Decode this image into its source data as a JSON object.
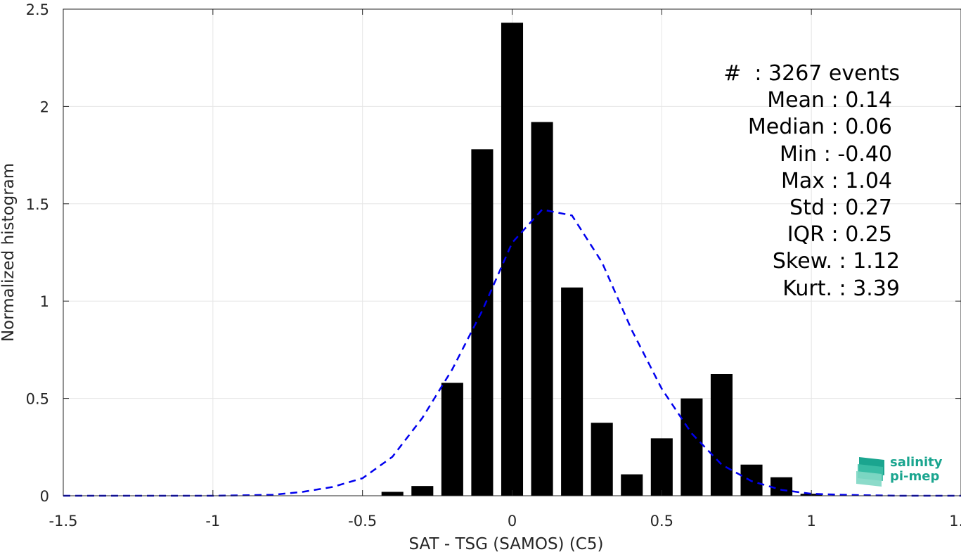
{
  "chart_data": {
    "type": "bar",
    "xlabel": "SAT - TSG (SAMOS) (C5)",
    "ylabel": "Normalized histogram",
    "xlim": [
      -1.5,
      1.5
    ],
    "ylim": [
      0,
      2.5
    ],
    "xticks": [
      -1.5,
      -1,
      -0.5,
      0,
      0.5,
      1,
      1.5
    ],
    "xtick_labels": [
      "-1.5",
      "-1",
      "-0.5",
      "0",
      "0.5",
      "1",
      "1.5"
    ],
    "yticks": [
      0,
      0.5,
      1,
      1.5,
      2,
      2.5
    ],
    "ytick_labels": [
      "0",
      "0.5",
      "1",
      "1.5",
      "2",
      "2.5"
    ],
    "grid": true,
    "bar_color": "#000000",
    "bars": {
      "x": [
        -0.4,
        -0.3,
        -0.2,
        -0.1,
        0.0,
        0.1,
        0.2,
        0.3,
        0.4,
        0.5,
        0.6,
        0.7,
        0.8,
        0.9,
        1.0
      ],
      "values": [
        0.02,
        0.05,
        0.58,
        1.78,
        2.43,
        1.92,
        1.07,
        0.375,
        0.11,
        0.295,
        0.5,
        0.625,
        0.16,
        0.095,
        0.01
      ]
    },
    "fit_curve": {
      "style": "dashed",
      "color": "#0000ee",
      "x": [
        -1.5,
        -1.4,
        -1.3,
        -1.2,
        -1.1,
        -1.0,
        -0.9,
        -0.8,
        -0.7,
        -0.6,
        -0.5,
        -0.4,
        -0.3,
        -0.2,
        -0.1,
        0.0,
        0.1,
        0.2,
        0.3,
        0.4,
        0.5,
        0.6,
        0.7,
        0.8,
        0.9,
        1.0,
        1.1,
        1.2,
        1.3,
        1.4,
        1.5
      ],
      "values": [
        0,
        0,
        0,
        0,
        0,
        0,
        0.002,
        0.005,
        0.02,
        0.045,
        0.09,
        0.2,
        0.4,
        0.65,
        0.95,
        1.3,
        1.47,
        1.44,
        1.2,
        0.85,
        0.55,
        0.32,
        0.16,
        0.075,
        0.03,
        0.01,
        0.005,
        0.002,
        0,
        0,
        0
      ]
    }
  },
  "stats": {
    "count": "#  : 3267 events",
    "mean": "Mean : 0.14",
    "median": "Median : 0.06",
    "min": "Min : -0.40",
    "max": "Max : 1.04",
    "std": "Std : 0.27",
    "iqr": "IQR : 0.25",
    "skew": "Skew. : 1.12",
    "kurt": "Kurt. : 3.39"
  },
  "logo": {
    "line1": "salinity",
    "line2": "pi-mep",
    "color": "#1aa58f"
  }
}
